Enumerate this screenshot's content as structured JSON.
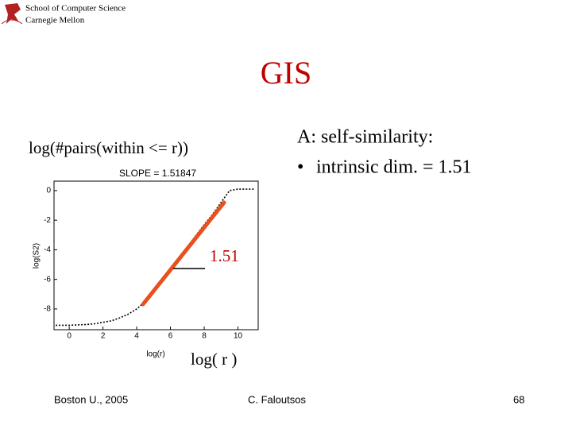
{
  "header": {
    "school": "School of Computer Science",
    "university": "Carnegie Mellon"
  },
  "title": "GIS",
  "left_caption": "log(#pairs(within <= r))",
  "right_text": {
    "heading": "A: self-similarity:",
    "bullet": "intrinsic dim. = 1.51"
  },
  "slope_annotation": "1.51",
  "x_caption": "log( r )",
  "footer": {
    "left": "Boston U., 2005",
    "center": "C. Faloutsos",
    "page": "68"
  },
  "chart_data": {
    "type": "line",
    "title": "SLOPE = 1.51847",
    "x_label": "log(r)",
    "y_label": "log(S2)",
    "x": [
      -0.8,
      0,
      1,
      1.5,
      2,
      2.5,
      3,
      3.5,
      4,
      4.5,
      5,
      5.5,
      6,
      6.5,
      7,
      7.5,
      8,
      8.5,
      9,
      9.5,
      10,
      10.5,
      11
    ],
    "values": [
      -9.1,
      -9.1,
      -9.05,
      -9.0,
      -8.9,
      -8.8,
      -8.6,
      -8.35,
      -8.0,
      -7.5,
      -6.8,
      -6.1,
      -5.3,
      -4.6,
      -3.8,
      -3.05,
      -2.3,
      -1.6,
      -0.8,
      0,
      0.1,
      0.1,
      0.1
    ],
    "color": "#000000",
    "xlim": [
      -0.9,
      11.2
    ],
    "ylim": [
      -9.4,
      0.64
    ],
    "xticks": [
      0,
      2,
      4,
      6,
      8,
      10
    ],
    "yticks": [
      0,
      -2,
      -4,
      -6,
      -8
    ]
  }
}
